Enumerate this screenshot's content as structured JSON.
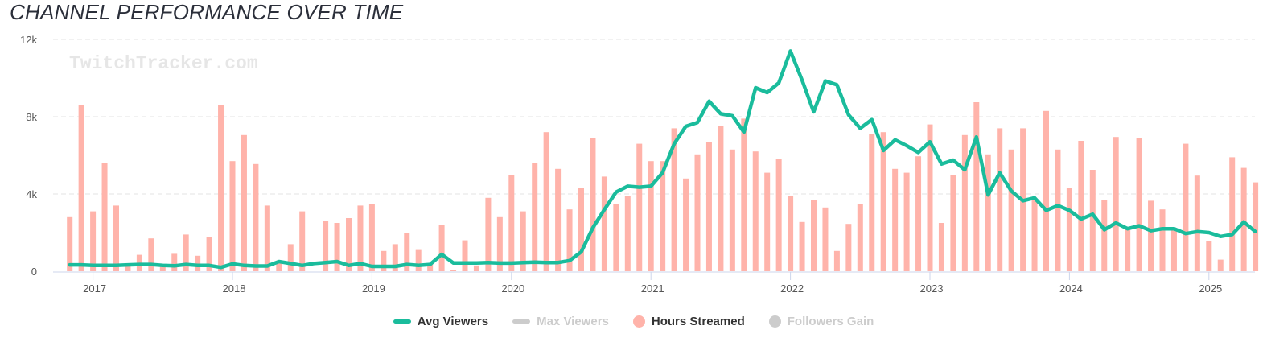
{
  "chart_data": {
    "type": "bar+line",
    "title": "CHANNEL PERFORMANCE OVER TIME",
    "watermark": "TwitchTracker.com",
    "start_month": "2016-11",
    "end_month": "2025-05",
    "y_ticks": [
      "0",
      "4k",
      "8k",
      "12k"
    ],
    "y_tick_values": [
      0,
      4000,
      8000,
      12000
    ],
    "ylim": [
      0,
      12000
    ],
    "x_ticks": [
      "2017",
      "2018",
      "2019",
      "2020",
      "2021",
      "2022",
      "2023",
      "2024",
      "2025"
    ],
    "x_tick_month_index": [
      2,
      14,
      26,
      38,
      50,
      62,
      74,
      86,
      98
    ],
    "grid": true,
    "legend_position": "bottom",
    "colors": {
      "avg_viewers": "#1abc9c",
      "max_viewers": "#cccccc",
      "hours_streamed": "#ffb3aa",
      "followers_gain": "#cccccc"
    },
    "legend": [
      {
        "name": "Avg Viewers",
        "symbol": "line",
        "active": true
      },
      {
        "name": "Max Viewers",
        "symbol": "line",
        "active": false
      },
      {
        "name": "Hours Streamed",
        "symbol": "dot",
        "active": true
      },
      {
        "name": "Followers Gain",
        "symbol": "dot",
        "active": false
      }
    ],
    "series": [
      {
        "name": "Hours Streamed",
        "type": "bar",
        "note": "plotted in left-axis units",
        "values": [
          2800,
          8600,
          3100,
          5600,
          3400,
          300,
          850,
          1700,
          350,
          900,
          1900,
          800,
          1750,
          8600,
          5700,
          7050,
          5550,
          3400,
          400,
          1400,
          3100,
          0,
          2600,
          2500,
          2750,
          3400,
          3500,
          1050,
          1400,
          2000,
          1100,
          400,
          2400,
          50,
          1600,
          300,
          3800,
          2800,
          5000,
          3100,
          5600,
          7200,
          5300,
          3200,
          4300,
          6900,
          4900,
          3500,
          3900,
          6600,
          5700,
          5700,
          7400,
          4800,
          6050,
          6700,
          7500,
          6300,
          7900,
          6200,
          5100,
          5800,
          3900,
          2550,
          3700,
          3300,
          1050,
          2450,
          3500,
          7100,
          7200,
          5300,
          5100,
          5950,
          7600,
          2500,
          5000,
          7050,
          8750,
          6050,
          7400,
          6300,
          7400,
          3750,
          8300,
          6300,
          4300,
          6750,
          5250,
          3700,
          6950,
          2300,
          6900,
          3650,
          3200,
          2200,
          6600,
          4950,
          1550,
          600,
          5900,
          5350,
          4600
        ]
      },
      {
        "name": "Avg Viewers",
        "type": "line",
        "values": [
          330,
          330,
          300,
          300,
          300,
          330,
          350,
          350,
          300,
          280,
          350,
          300,
          300,
          200,
          380,
          300,
          270,
          270,
          500,
          400,
          300,
          400,
          450,
          500,
          300,
          400,
          250,
          250,
          250,
          350,
          300,
          350,
          870,
          430,
          430,
          430,
          450,
          420,
          420,
          450,
          470,
          450,
          450,
          550,
          1000,
          2250,
          3200,
          4100,
          4400,
          4350,
          4400,
          5100,
          6600,
          7500,
          7700,
          8800,
          8150,
          8050,
          7200,
          9500,
          9250,
          9750,
          11400,
          9900,
          8250,
          9850,
          9650,
          8100,
          7400,
          7850,
          6250,
          6800,
          6500,
          6150,
          6700,
          5550,
          5750,
          5250,
          6950,
          3950,
          5100,
          4150,
          3650,
          3800,
          3150,
          3400,
          3150,
          2700,
          2950,
          2150,
          2500,
          2200,
          2350,
          2100,
          2200,
          2200,
          1950,
          2050,
          2000,
          1800,
          1900,
          2550,
          2050
        ]
      }
    ]
  }
}
